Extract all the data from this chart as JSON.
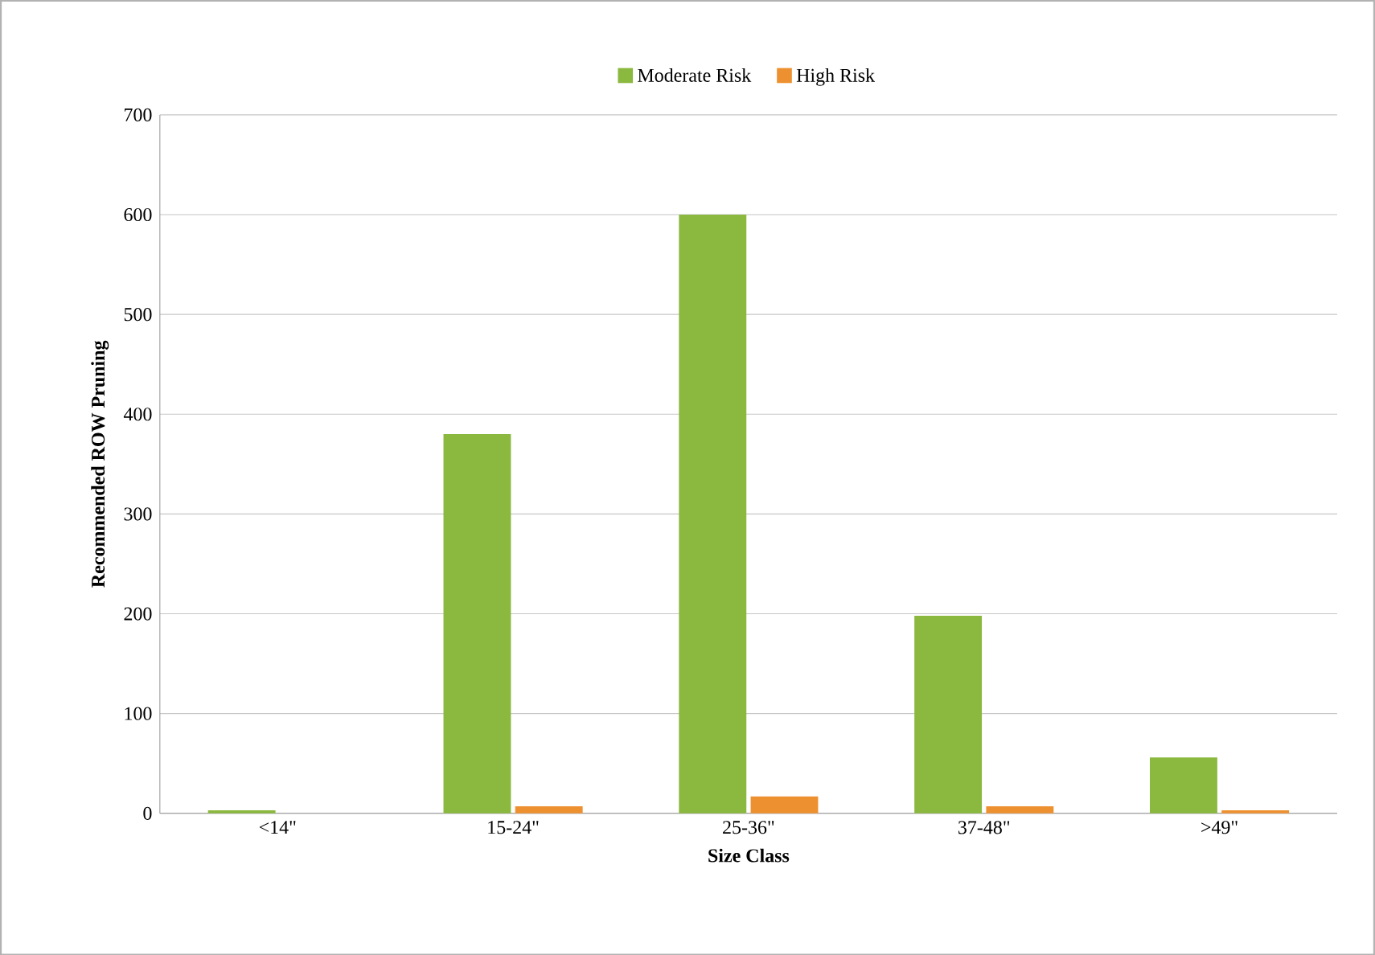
{
  "chart_data": {
    "type": "bar",
    "xlabel": "Size Class",
    "ylabel": "Recommended ROW Pruning",
    "categories": [
      "<14\"",
      "15-24\"",
      "25-36\"",
      "37-48\"",
      ">49\""
    ],
    "series": [
      {
        "name": "Moderate Risk",
        "color": "#8bb83f",
        "values": [
          3,
          380,
          600,
          198,
          56
        ]
      },
      {
        "name": "High Risk",
        "color": "#ed9130",
        "values": [
          0,
          7,
          17,
          7,
          3
        ]
      }
    ],
    "ylim": [
      0,
      700
    ],
    "yticks": [
      0,
      100,
      200,
      300,
      400,
      500,
      600,
      700
    ],
    "grid": "y",
    "legend": "top"
  }
}
